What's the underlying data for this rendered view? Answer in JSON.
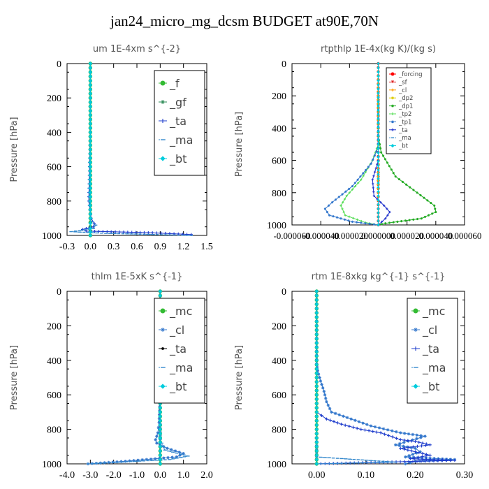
{
  "title": "jan24_micro_mg_dcsm  BUDGET at90E,70N",
  "chart_data": [
    {
      "type": "line",
      "title": "um   1E-4xm s^{-2}",
      "ylabel": "Pressure [hPa]",
      "xlim": [
        -0.3,
        1.5
      ],
      "ylim": [
        1000,
        0
      ],
      "xticks": [
        "-0.3",
        "0.0",
        "0.3",
        "0.6",
        "0.9",
        "1.2",
        "1.5"
      ],
      "xtick_values": [
        -0.3,
        0.0,
        0.3,
        0.6,
        0.9,
        1.2,
        1.5
      ],
      "yticks": [
        "0",
        "200",
        "400",
        "600",
        "800",
        "1000"
      ],
      "ytick_values": [
        0,
        200,
        400,
        600,
        800,
        1000
      ],
      "legend_placement": "top-right",
      "series": [
        {
          "name": "_f",
          "color": "#33bb33",
          "marker": "circle",
          "x": [
            0,
            0,
            0,
            0,
            0,
            0,
            0,
            0,
            0,
            0,
            0
          ],
          "y": [
            0,
            100,
            200,
            300,
            400,
            500,
            600,
            700,
            800,
            900,
            1000
          ]
        },
        {
          "name": "_gf",
          "color": "#2e8b57",
          "marker": "star",
          "x": [
            0,
            0,
            0,
            0,
            0,
            0,
            0,
            0,
            0,
            0,
            0
          ],
          "y": [
            0,
            100,
            200,
            300,
            400,
            500,
            600,
            700,
            800,
            900,
            1000
          ]
        },
        {
          "name": "_ta",
          "color": "#1e3ccc",
          "marker": "plus",
          "x": [
            0,
            0,
            0,
            -0.02,
            0.01,
            0.05,
            0.04,
            -0.1,
            -0.05,
            0.8,
            1.3
          ],
          "y": [
            0,
            200,
            400,
            800,
            900,
            930,
            950,
            965,
            975,
            985,
            995
          ]
        },
        {
          "name": "_ma",
          "color": "#3388cc",
          "marker": "dash",
          "x": [
            0,
            0,
            0,
            -0.01,
            0.0,
            0.02,
            0.07,
            0.04,
            -0.25,
            0.2,
            1.3
          ],
          "y": [
            0,
            200,
            400,
            800,
            880,
            920,
            940,
            960,
            978,
            988,
            1000
          ]
        },
        {
          "name": "_bt",
          "color": "#00ccdd",
          "marker": "diamond",
          "x": [
            0,
            0,
            0,
            0,
            0,
            0,
            0,
            0
          ],
          "y": [
            0,
            200,
            400,
            600,
            800,
            900,
            960,
            1000
          ]
        }
      ]
    },
    {
      "type": "line",
      "title": "rtpthlp   1E-4x(kg K)/(kg s)",
      "ylabel": "Pressure [hPa]",
      "xlim": [
        -6e-05,
        6e-05
      ],
      "ylim": [
        1000,
        0
      ],
      "xticks": [
        "-0.000060",
        "-0.000040",
        "-0.000020",
        "0.000000",
        "0.000020",
        "0.000040",
        "0.000060"
      ],
      "xtick_values": [
        -6e-05,
        -4e-05,
        -2e-05,
        0.0,
        2e-05,
        4e-05,
        6e-05
      ],
      "yticks": [
        "0",
        "200",
        "400",
        "600",
        "800",
        "1000"
      ],
      "ytick_values": [
        0,
        200,
        400,
        600,
        800,
        1000
      ],
      "legend_placement": "top-right",
      "series": [
        {
          "name": "_forcing",
          "color": "#ff0000",
          "marker": "circle",
          "x": [
            0,
            0,
            0,
            0,
            0,
            0,
            0,
            0,
            0,
            0,
            0
          ],
          "y": [
            0,
            100,
            200,
            300,
            400,
            500,
            600,
            700,
            800,
            900,
            1000
          ]
        },
        {
          "name": "_sf",
          "color": "#dd2222",
          "marker": "triangle",
          "x": [
            0,
            0,
            0,
            0,
            0,
            0,
            0,
            0,
            0,
            0,
            0
          ],
          "y": [
            0,
            100,
            200,
            300,
            400,
            500,
            600,
            700,
            800,
            900,
            1000
          ]
        },
        {
          "name": "_cl",
          "color": "#ff9900",
          "marker": "plus",
          "x": [
            0,
            0,
            0,
            0,
            0,
            0,
            0
          ],
          "y": [
            0,
            200,
            400,
            600,
            800,
            900,
            1000
          ]
        },
        {
          "name": "_dp2",
          "color": "#ddcc00",
          "marker": "star",
          "x": [
            0,
            0,
            0,
            0,
            0,
            0,
            0
          ],
          "y": [
            0,
            200,
            400,
            600,
            800,
            900,
            1000
          ]
        },
        {
          "name": "_dp1",
          "color": "#22aa22",
          "marker": "star",
          "x": [
            0,
            0,
            2e-06,
            1.2e-05,
            2.7e-05,
            3.9e-05,
            4e-05,
            3e-05,
            5e-06,
            0
          ],
          "y": [
            0,
            450,
            550,
            700,
            800,
            880,
            920,
            960,
            990,
            1000
          ]
        },
        {
          "name": "_tp2",
          "color": "#55dd55",
          "marker": "plus",
          "x": [
            0,
            0,
            -4e-06,
            -1.2e-05,
            -2.2e-05,
            -2.6e-05,
            -2.3e-05,
            -9e-06,
            0
          ],
          "y": [
            0,
            500,
            600,
            720,
            820,
            880,
            940,
            985,
            1000
          ]
        },
        {
          "name": "_tp1",
          "color": "#3377cc",
          "marker": "star",
          "x": [
            0,
            0,
            -5e-06,
            -1.8e-05,
            -3.2e-05,
            -3.7e-05,
            -3.4e-05,
            -1.8e-05,
            0
          ],
          "y": [
            0,
            520,
            620,
            760,
            860,
            900,
            940,
            980,
            1000
          ]
        },
        {
          "name": "_ta",
          "color": "#2233cc",
          "marker": "plus",
          "x": [
            0,
            0,
            -4e-06,
            -3e-06,
            4e-06,
            8e-06,
            5e-06,
            0
          ],
          "y": [
            0,
            600,
            720,
            820,
            880,
            920,
            960,
            1000
          ]
        },
        {
          "name": "_ma",
          "color": "#3388cc",
          "marker": "dash",
          "x": [
            0,
            0,
            0,
            0
          ],
          "y": [
            0,
            500,
            900,
            1000
          ]
        },
        {
          "name": "_bt",
          "color": "#00ccdd",
          "marker": "diamond",
          "x": [
            0,
            0,
            0,
            0
          ],
          "y": [
            0,
            500,
            900,
            1000
          ]
        }
      ]
    },
    {
      "type": "line",
      "title": "thlm   1E-5xK  s^{-1}",
      "ylabel": "Pressure [hPa]",
      "xlim": [
        -4.0,
        2.0
      ],
      "ylim": [
        1000,
        0
      ],
      "xticks": [
        "-4.0",
        "-3.0",
        "-2.0",
        "-1.0",
        "0.0",
        "1.0",
        "2.0"
      ],
      "xtick_values": [
        -4.0,
        -3.0,
        -2.0,
        -1.0,
        0.0,
        1.0,
        2.0
      ],
      "yticks": [
        "0",
        "200",
        "400",
        "600",
        "800",
        "1000"
      ],
      "ytick_values": [
        0,
        200,
        400,
        600,
        800,
        1000
      ],
      "legend_placement": "top-right",
      "series": [
        {
          "name": "_mc",
          "color": "#33bb33",
          "marker": "circle",
          "x": [
            0,
            0,
            0,
            0,
            0,
            0,
            0,
            0,
            0,
            0,
            0
          ],
          "y": [
            0,
            100,
            200,
            300,
            400,
            500,
            600,
            700,
            800,
            900,
            1000
          ]
        },
        {
          "name": "_cl",
          "color": "#3377cc",
          "marker": "star",
          "x": [
            0,
            0,
            0,
            -0.05,
            -0.1,
            -0.2,
            -0.15,
            0.3,
            1.0,
            0.7,
            -1.5,
            -3.1
          ],
          "y": [
            0,
            400,
            600,
            760,
            820,
            860,
            880,
            910,
            940,
            960,
            985,
            1000
          ]
        },
        {
          "name": "_ta",
          "color": "#000000",
          "marker": "dot",
          "x": [
            0,
            0,
            0,
            0,
            0
          ],
          "y": [
            0,
            200,
            400,
            800,
            1000
          ]
        },
        {
          "name": "_ma",
          "color": "#3388cc",
          "marker": "dash",
          "x": [
            0,
            0,
            0,
            0,
            0.2,
            1.2,
            0.4,
            -3.1
          ],
          "y": [
            0,
            400,
            700,
            860,
            920,
            955,
            975,
            1000
          ]
        },
        {
          "name": "_bt",
          "color": "#00ccdd",
          "marker": "diamond",
          "x": [
            0,
            0,
            0,
            0
          ],
          "y": [
            0,
            400,
            800,
            1000
          ]
        }
      ]
    },
    {
      "type": "line",
      "title": "rtm   1E-8xkg  kg^{-1} s^{-1}",
      "ylabel": "Pressure [hPa]",
      "xlim": [
        -0.05,
        0.3
      ],
      "ylim": [
        1000,
        0
      ],
      "xticks": [
        "0.00",
        "0.10",
        "0.20",
        "0.30"
      ],
      "xtick_values": [
        0.0,
        0.1,
        0.2,
        0.3
      ],
      "yticks": [
        "0",
        "200",
        "400",
        "600",
        "800",
        "1000"
      ],
      "ytick_values": [
        0,
        200,
        400,
        600,
        800,
        1000
      ],
      "legend_placement": "top-right",
      "series": [
        {
          "name": "_mc",
          "color": "#33bb33",
          "marker": "circle",
          "x": [
            0,
            0,
            0,
            0,
            0,
            0,
            0,
            0,
            0,
            0,
            0
          ],
          "y": [
            0,
            100,
            200,
            300,
            400,
            500,
            600,
            700,
            800,
            900,
            1000
          ]
        },
        {
          "name": "_cl",
          "color": "#3377cc",
          "marker": "star",
          "x": [
            0,
            0,
            0.002,
            0.008,
            0.015,
            0.02,
            0.03,
            0.07,
            0.11,
            0.17,
            0.22,
            0.16,
            0.2,
            0.21,
            0.18,
            0.28,
            0.2,
            0.18
          ],
          "y": [
            0,
            420,
            460,
            520,
            580,
            640,
            700,
            740,
            780,
            820,
            840,
            890,
            910,
            930,
            960,
            975,
            985,
            1000
          ]
        },
        {
          "name": "_ta",
          "color": "#1e3ccc",
          "marker": "plus",
          "x": [
            0,
            0,
            0,
            0,
            0,
            0,
            0.01,
            0.02,
            0.05,
            0.09,
            0.13,
            0.17,
            0.2,
            0.23,
            0.17,
            0.2,
            0.23,
            0.19,
            0.28,
            0.0
          ],
          "y": [
            0,
            400,
            500,
            600,
            650,
            700,
            720,
            740,
            770,
            800,
            820,
            860,
            870,
            890,
            910,
            930,
            950,
            970,
            980,
            1000
          ]
        },
        {
          "name": "_ma",
          "color": "#3388cc",
          "marker": "dash",
          "x": [
            0,
            0,
            0,
            0,
            0.16,
            0.0
          ],
          "y": [
            0,
            400,
            800,
            960,
            990,
            1000
          ]
        },
        {
          "name": "_bt",
          "color": "#00ccdd",
          "marker": "diamond",
          "x": [
            0,
            0,
            0,
            0
          ],
          "y": [
            0,
            400,
            800,
            1000
          ]
        }
      ]
    }
  ]
}
